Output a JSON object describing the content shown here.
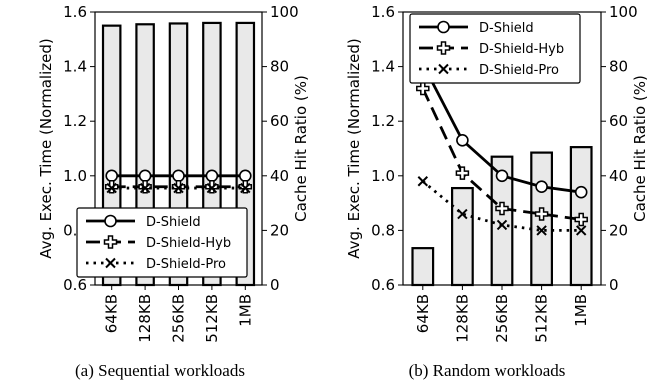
{
  "chart_data": [
    {
      "type": "bar+line",
      "caption": "(a) Sequential workloads",
      "categories": [
        "64KB",
        "128KB",
        "256KB",
        "512KB",
        "1MB"
      ],
      "ylabel": "Avg. Exec. Time (Normalized)",
      "y2label": "Cache Hit Ratio (%)",
      "ylim": [
        0.6,
        1.6
      ],
      "y2lim": [
        0,
        100
      ],
      "yticks": [
        "0.6",
        "0.8",
        "1.0",
        "1.2",
        "1.4",
        "1.6"
      ],
      "y2ticks": [
        "0",
        "20",
        "40",
        "60",
        "80",
        "100"
      ],
      "bars": [
        95,
        95.5,
        95.8,
        96,
        96
      ],
      "series": [
        {
          "name": "D-Shield",
          "values": [
            1.0,
            1.0,
            1.0,
            1.0,
            1.0
          ],
          "style": "solid",
          "marker": "circle"
        },
        {
          "name": "D-Shield-Hyb",
          "values": [
            0.96,
            0.96,
            0.96,
            0.96,
            0.96
          ],
          "style": "dashed",
          "marker": "plus"
        },
        {
          "name": "D-Shield-Pro",
          "values": [
            0.955,
            0.955,
            0.955,
            0.955,
            0.955
          ],
          "style": "dotted",
          "marker": "x"
        }
      ],
      "legend_position": "lower-right",
      "grid": false
    },
    {
      "type": "bar+line",
      "caption": "(b) Random workloads",
      "categories": [
        "64KB",
        "128KB",
        "256KB",
        "512KB",
        "1MB"
      ],
      "ylabel": "Avg. Exec. Time (Normalized)",
      "y2label": "Cache Hit Ratio (%)",
      "ylim": [
        0.6,
        1.6
      ],
      "y2lim": [
        0,
        100
      ],
      "yticks": [
        "0.6",
        "0.8",
        "1.0",
        "1.2",
        "1.4",
        "1.6"
      ],
      "y2ticks": [
        "0",
        "20",
        "40",
        "60",
        "80",
        "100"
      ],
      "bars": [
        13.5,
        35.5,
        47,
        48.5,
        50.5
      ],
      "series": [
        {
          "name": "D-Shield",
          "values": [
            1.41,
            1.13,
            1.0,
            0.96,
            0.94
          ],
          "style": "solid",
          "marker": "circle"
        },
        {
          "name": "D-Shield-Hyb",
          "values": [
            1.32,
            1.01,
            0.88,
            0.86,
            0.84
          ],
          "style": "dashed",
          "marker": "plus"
        },
        {
          "name": "D-Shield-Pro",
          "values": [
            0.98,
            0.86,
            0.82,
            0.8,
            0.8
          ],
          "style": "dotted",
          "marker": "x"
        }
      ],
      "legend_position": "top-left",
      "grid": false
    }
  ]
}
